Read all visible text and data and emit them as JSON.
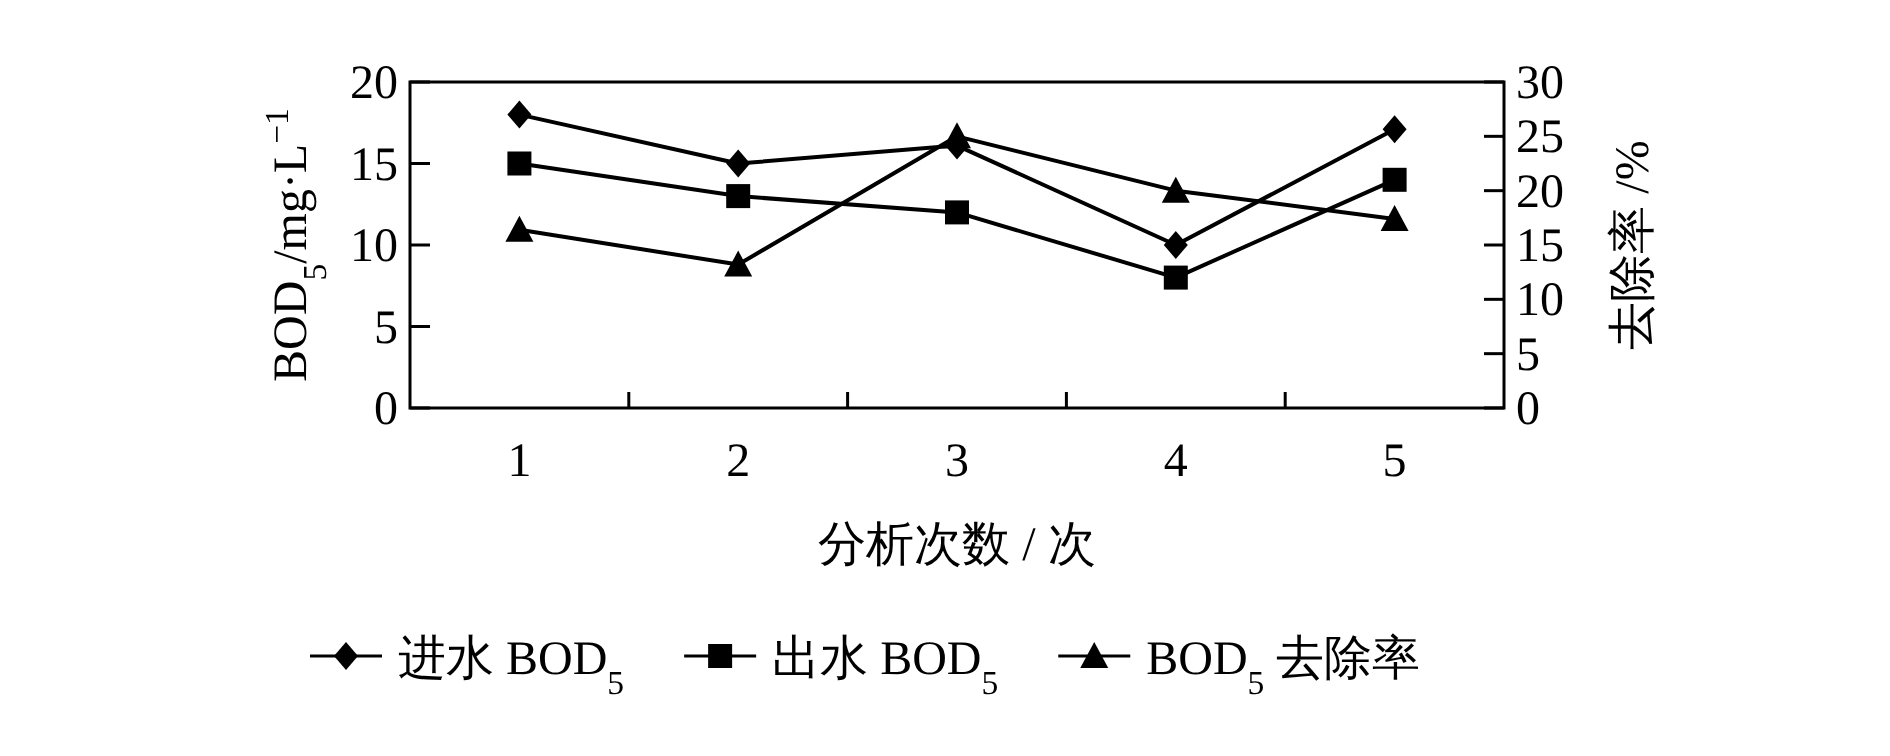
{
  "chart_data": {
    "type": "line",
    "categories": [
      "1",
      "2",
      "3",
      "4",
      "5"
    ],
    "xlabel": "分析次数 / 次",
    "ylabel": "BOD$_{5}$/mg·L$^{−1}$",
    "y2label": "去除率 /%",
    "ylim": [
      0,
      20
    ],
    "yticks": [
      0,
      5,
      10,
      15,
      20
    ],
    "y2lim": [
      0,
      30
    ],
    "y2ticks": [
      0,
      5,
      10,
      15,
      20,
      25,
      30
    ],
    "grid": false,
    "legend": "bottom",
    "series": [
      {
        "name": "进水 BOD$_{5}$",
        "color": "#000000",
        "marker": "diamond",
        "values": [
          18,
          15,
          16.1,
          10,
          17.1
        ]
      },
      {
        "name": "出水 BOD$_{5}$",
        "color": "#000000",
        "marker": "square",
        "values": [
          15,
          13,
          12,
          8,
          14
        ]
      },
      {
        "name": "BOD$_{5}$ 去除率",
        "color": "#000000",
        "marker": "triangle",
        "axis": "y2",
        "values": [
          16.4,
          13.2,
          25,
          20,
          17.4
        ]
      }
    ]
  }
}
